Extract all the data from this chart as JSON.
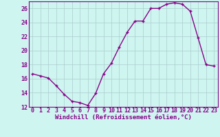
{
  "x": [
    0,
    1,
    2,
    3,
    4,
    5,
    6,
    7,
    8,
    9,
    10,
    11,
    12,
    13,
    14,
    15,
    16,
    17,
    18,
    19,
    20,
    21,
    22,
    23
  ],
  "y": [
    16.7,
    16.4,
    16.1,
    15.0,
    13.8,
    12.8,
    12.6,
    12.2,
    13.9,
    16.7,
    18.2,
    20.5,
    22.6,
    24.2,
    24.2,
    26.0,
    26.0,
    26.6,
    26.8,
    26.6,
    25.6,
    21.8,
    18.0,
    17.8
  ],
  "line_color": "#880088",
  "marker": "+",
  "marker_size": 3.5,
  "marker_edge_width": 1.0,
  "bg_color": "#cef5f0",
  "grid_color": "#aacccc",
  "xlabel": "Windchill (Refroidissement éolien,°C)",
  "ylim": [
    12,
    27
  ],
  "xlim": [
    -0.5,
    23.5
  ],
  "yticks": [
    12,
    14,
    16,
    18,
    20,
    22,
    24,
    26
  ],
  "xticks": [
    0,
    1,
    2,
    3,
    4,
    5,
    6,
    7,
    8,
    9,
    10,
    11,
    12,
    13,
    14,
    15,
    16,
    17,
    18,
    19,
    20,
    21,
    22,
    23
  ],
  "xlabel_fontsize": 6.5,
  "tick_fontsize": 6.0,
  "line_width": 1.0
}
